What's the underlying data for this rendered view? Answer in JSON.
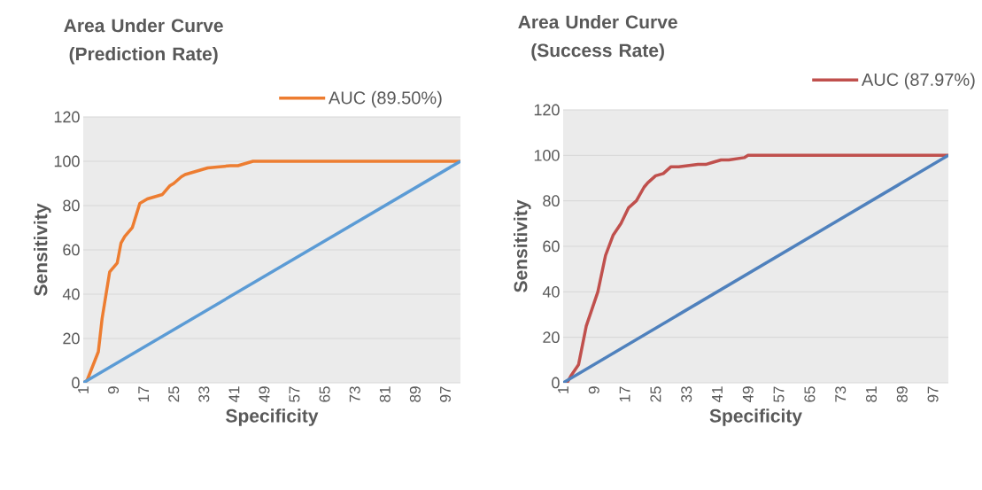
{
  "chart_data": [
    {
      "type": "line",
      "title": "Area Under Curve (Prediction Rate)",
      "xlabel": "Specificity",
      "ylabel": "Sensitivity",
      "xlim": [
        1,
        101
      ],
      "xticks": [
        1,
        9,
        17,
        25,
        33,
        41,
        49,
        57,
        65,
        73,
        81,
        89,
        97
      ],
      "ylim": [
        0,
        120
      ],
      "yticks": [
        0,
        20,
        40,
        60,
        80,
        100,
        120
      ],
      "grid": "y",
      "legend": "top right",
      "series": [
        {
          "name": "AUC (89.50%)",
          "color": "#ed7d31",
          "x": [
            1,
            2,
            5,
            6,
            8,
            10,
            11,
            12,
            14,
            16,
            18,
            20,
            22,
            24,
            25,
            27,
            28,
            30,
            32,
            34,
            40,
            42,
            44,
            46,
            101
          ],
          "values": [
            0,
            1,
            14,
            29,
            50,
            54,
            63,
            66,
            70,
            81,
            83,
            84,
            85,
            89,
            90,
            93,
            94,
            95,
            96,
            97,
            98,
            98,
            99,
            100,
            100
          ]
        },
        {
          "color": "#5b9bd5",
          "x": [
            1,
            101
          ],
          "values": [
            0,
            100
          ]
        }
      ]
    },
    {
      "type": "line",
      "title": "Area Under Curve (Success Rate)",
      "xlabel": "Specificity",
      "ylabel": "Sensitivity",
      "xlim": [
        1,
        101
      ],
      "xticks": [
        1,
        9,
        17,
        25,
        33,
        41,
        49,
        57,
        65,
        73,
        81,
        89,
        97
      ],
      "ylim": [
        0,
        120
      ],
      "yticks": [
        0,
        20,
        40,
        60,
        80,
        100,
        120
      ],
      "grid": "y",
      "legend": "top right",
      "series": [
        {
          "name": "AUC (87.97%)",
          "color": "#c0504d",
          "x": [
            1,
            2,
            3,
            5,
            7,
            10,
            12,
            14,
            16,
            18,
            20,
            22,
            23,
            25,
            27,
            29,
            31,
            36,
            38,
            40,
            42,
            44,
            48,
            49,
            57,
            65,
            101
          ],
          "values": [
            0,
            0,
            3,
            8,
            25,
            40,
            56,
            65,
            70,
            77,
            80,
            86,
            88,
            91,
            92,
            95,
            95,
            96,
            96,
            97,
            98,
            98,
            99,
            100,
            100,
            100,
            100
          ]
        },
        {
          "color": "#4f81bd",
          "x": [
            1,
            101
          ],
          "values": [
            0,
            100
          ]
        }
      ]
    }
  ]
}
